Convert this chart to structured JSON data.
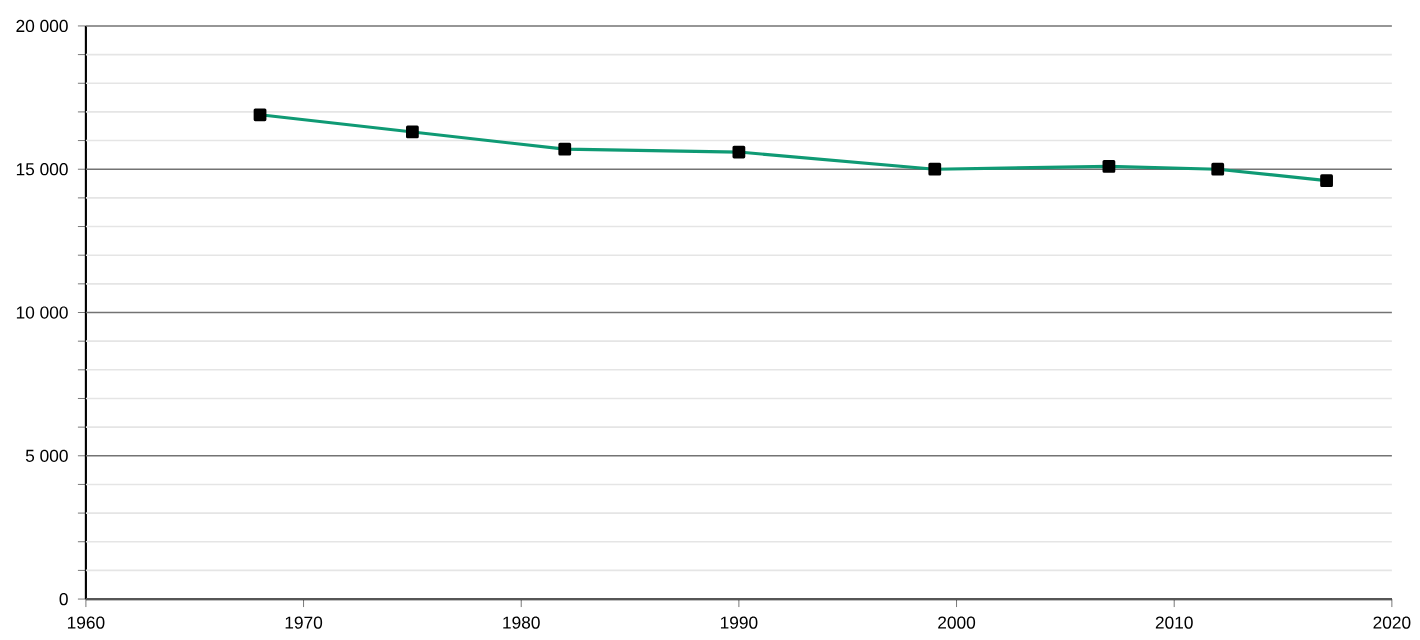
{
  "chart_data": {
    "type": "line",
    "x": [
      1968,
      1975,
      1982,
      1990,
      1999,
      2007,
      2012,
      2017
    ],
    "series": [
      {
        "color": "#0f9a74",
        "values": [
          16900,
          16300,
          15700,
          15600,
          15000,
          15100,
          15000,
          14600
        ]
      }
    ],
    "xlim": [
      1960,
      2020
    ],
    "xticks": [
      1960,
      1970,
      1980,
      1990,
      2000,
      2010,
      2020
    ],
    "ylim": [
      0,
      20000
    ],
    "yticks": [
      {
        "value": 0,
        "label": "0"
      },
      {
        "value": 1000,
        "label": null
      },
      {
        "value": 2000,
        "label": null
      },
      {
        "value": 3000,
        "label": null
      },
      {
        "value": 4000,
        "label": null
      },
      {
        "value": 5000,
        "label": "5 000"
      },
      {
        "value": 6000,
        "label": null
      },
      {
        "value": 7000,
        "label": null
      },
      {
        "value": 8000,
        "label": null
      },
      {
        "value": 9000,
        "label": null
      },
      {
        "value": 10000,
        "label": "10 000"
      },
      {
        "value": 11000,
        "label": null
      },
      {
        "value": 12000,
        "label": null
      },
      {
        "value": 13000,
        "label": null
      },
      {
        "value": 14000,
        "label": null
      },
      {
        "value": 15000,
        "label": "15 000"
      },
      {
        "value": 16000,
        "label": null
      },
      {
        "value": 17000,
        "label": null
      },
      {
        "value": 18000,
        "label": null
      },
      {
        "value": 19000,
        "label": null
      },
      {
        "value": 20000,
        "label": "20 000"
      }
    ],
    "grid": "y",
    "marker": "square",
    "line_style": "solid"
  }
}
